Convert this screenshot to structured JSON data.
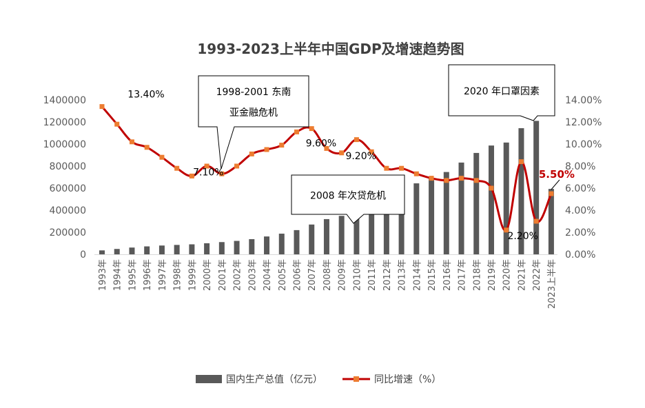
{
  "chart_data": {
    "type": "bar+line",
    "title": "1993-2023上半年中国GDP及增速趋势图",
    "categories": [
      "1993年",
      "1994年",
      "1995年",
      "1996年",
      "1997年",
      "1998年",
      "1999年",
      "2000年",
      "2001年",
      "2002年",
      "2003年",
      "2004年",
      "2005年",
      "2006年",
      "2007年",
      "2008年",
      "2009年",
      "2010年",
      "2011年",
      "2012年",
      "2013年",
      "2014年",
      "2015年",
      "2016年",
      "2017年",
      "2018年",
      "2019年",
      "2020年",
      "2021年",
      "2022年",
      "2023上半年"
    ],
    "series": [
      {
        "name": "国内生产总值（亿元）",
        "kind": "bar",
        "axis": "left",
        "color": "#595959",
        "values": [
          35673,
          48637,
          61340,
          71814,
          79715,
          85196,
          90564,
          100280,
          110863,
          121717,
          137422,
          161840,
          187319,
          219438,
          270092,
          319245,
          348518,
          412119,
          487940,
          538580,
          592963,
          643563,
          688858,
          746395,
          832036,
          919281,
          986515,
          1013567,
          1143670,
          1210207,
          593034
        ]
      },
      {
        "name": "同比增速（%）",
        "kind": "line",
        "axis": "right",
        "color": "#c00000",
        "marker_color": "#ed7d31",
        "values": [
          13.4,
          11.8,
          10.2,
          9.7,
          8.8,
          7.8,
          7.1,
          8.0,
          7.3,
          8.0,
          9.1,
          9.5,
          9.9,
          11.1,
          11.4,
          9.6,
          9.2,
          10.4,
          9.3,
          7.8,
          7.8,
          7.3,
          6.9,
          6.7,
          6.9,
          6.7,
          6.0,
          2.2,
          8.4,
          3.0,
          5.5
        ]
      }
    ],
    "y_left": {
      "min": 0,
      "max": 1400000,
      "ticks": [
        "0",
        "200000",
        "400000",
        "600000",
        "800000",
        "1000000",
        "1200000",
        "1400000"
      ]
    },
    "y_right": {
      "min": 0,
      "max": 14,
      "ticks": [
        "0.00%",
        "2.00%",
        "4.00%",
        "6.00%",
        "8.00%",
        "10.00%",
        "12.00%",
        "14.00%"
      ]
    },
    "data_labels": [
      {
        "index": 0,
        "text": "13.40%"
      },
      {
        "index": 6,
        "text": "7.10%"
      },
      {
        "index": 15,
        "text": "9.60%"
      },
      {
        "index": 16,
        "text": "9.20%"
      },
      {
        "index": 27,
        "text": "2.20%"
      },
      {
        "index": 30,
        "text": "5.50%",
        "highlight": true
      }
    ],
    "callouts": [
      {
        "lines": [
          "1998-2001 东南",
          "亚金融危机"
        ],
        "point_index": 8
      },
      {
        "lines": [
          "2008 年次贷危机"
        ],
        "point_index": 17
      },
      {
        "lines": [
          "2020 年口罩因素"
        ],
        "point_index": 29
      }
    ],
    "legend": {
      "position": "bottom"
    },
    "grid": false
  }
}
